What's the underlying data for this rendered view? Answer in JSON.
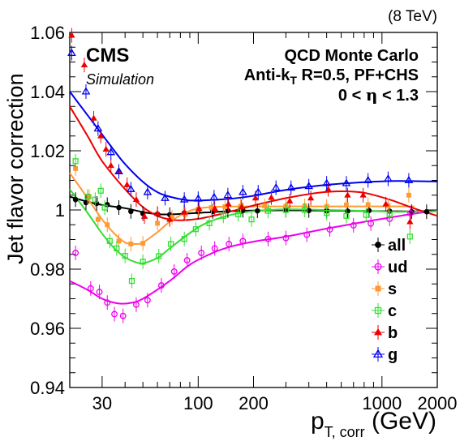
{
  "header": {
    "energy": "(8 TeV)",
    "cms": "CMS",
    "simulation": "Simulation",
    "info1": "QCD Monte Carlo",
    "info2_pre": "Anti-k",
    "info2_sub": "T",
    "info2_post": " R=0.5, PF+CHS",
    "info3_a": "0 < ",
    "info3_eta": "η",
    "info3_b": " < 1.3"
  },
  "chart_data": {
    "type": "scatter",
    "title": "",
    "ylabel": "Jet flavor correction",
    "xlabel": {
      "main": "p",
      "sub": "T, corr",
      "unit": " (GeV)"
    },
    "xscale": "log",
    "xlim": [
      20,
      2000
    ],
    "ylim": [
      0.94,
      1.06
    ],
    "xticks": [
      30,
      100,
      200,
      1000,
      2000
    ],
    "yticks": [
      0.94,
      0.96,
      0.98,
      1,
      1.02,
      1.04,
      1.06
    ],
    "legend_position": "right",
    "series": [
      {
        "name": "all",
        "color": "#000000",
        "marker": "filled-circle",
        "points": [
          [
            21.5,
            1.0035
          ],
          [
            24.5,
            1.0025
          ],
          [
            28,
            1.0022
          ],
          [
            32,
            1.0018
          ],
          [
            37,
            1.0008
          ],
          [
            43,
            0.9995
          ],
          [
            50,
            0.9988
          ],
          [
            60,
            0.9986
          ],
          [
            70,
            0.9984
          ],
          [
            84,
            0.999
          ],
          [
            100,
            0.9994
          ],
          [
            120,
            0.9995
          ],
          [
            145,
            0.9998
          ],
          [
            175,
            0.9999
          ],
          [
            210,
            0.9997
          ],
          [
            300,
            0.9999
          ],
          [
            400,
            0.9998
          ],
          [
            500,
            0.9997
          ],
          [
            650,
            0.9996
          ],
          [
            850,
            0.9998
          ],
          [
            1100,
            0.9996
          ],
          [
            1450,
            0.9994
          ],
          [
            1750,
            0.9994
          ]
        ],
        "fit": [
          [
            20,
            1.0045
          ],
          [
            25,
            1.0028
          ],
          [
            30,
            1.0017
          ],
          [
            40,
            1.0006
          ],
          [
            50,
            0.9993
          ],
          [
            60,
            0.9986
          ],
          [
            70,
            0.9985
          ],
          [
            100,
            0.999
          ],
          [
            150,
            0.9996
          ],
          [
            200,
            0.9998
          ],
          [
            300,
            0.9999
          ],
          [
            500,
            0.9998
          ],
          [
            1000,
            0.9996
          ],
          [
            1500,
            0.9995
          ],
          [
            2000,
            0.9998
          ]
        ]
      },
      {
        "name": "ud",
        "color": "#ee00ee",
        "marker": "open-circle",
        "points": [
          [
            21.5,
            0.9855
          ],
          [
            26,
            0.9735
          ],
          [
            29,
            0.9723
          ],
          [
            32,
            0.9687
          ],
          [
            35,
            0.9648
          ],
          [
            39,
            0.9642
          ],
          [
            46,
            0.968
          ],
          [
            53,
            0.9695
          ],
          [
            63,
            0.9745
          ],
          [
            74,
            0.9792
          ],
          [
            87,
            0.983
          ],
          [
            104,
            0.9855
          ],
          [
            123,
            0.987
          ],
          [
            147,
            0.9885
          ],
          [
            175,
            0.9895
          ],
          [
            240,
            0.9902
          ],
          [
            300,
            0.9905
          ],
          [
            390,
            0.9916
          ],
          [
            520,
            0.9934
          ],
          [
            700,
            0.9948
          ],
          [
            870,
            0.9954
          ],
          [
            1100,
            0.997
          ],
          [
            1430,
            0.9989
          ]
        ],
        "fit": [
          [
            20,
            0.976
          ],
          [
            25,
            0.973
          ],
          [
            30,
            0.97
          ],
          [
            36,
            0.9685
          ],
          [
            42,
            0.9685
          ],
          [
            50,
            0.97
          ],
          [
            70,
            0.976
          ],
          [
            90,
            0.9815
          ],
          [
            120,
            0.9855
          ],
          [
            150,
            0.9876
          ],
          [
            200,
            0.9893
          ],
          [
            300,
            0.991
          ],
          [
            500,
            0.9937
          ],
          [
            800,
            0.996
          ],
          [
            1200,
            0.9978
          ],
          [
            1600,
            0.999
          ],
          [
            2000,
            0.9997
          ]
        ]
      },
      {
        "name": "s",
        "color": "#ff9933",
        "marker": "filled-square",
        "points": [
          [
            21.5,
            1.014
          ],
          [
            25.5,
            1.0045
          ],
          [
            28.5,
            0.9968
          ],
          [
            32,
            0.995
          ],
          [
            37,
            0.9895
          ],
          [
            43,
            0.9885
          ],
          [
            50,
            0.9887
          ],
          [
            60,
            0.9955
          ],
          [
            72,
            0.9975
          ],
          [
            85,
            0.9985
          ],
          [
            100,
            1.0003
          ],
          [
            118,
            1.0008
          ],
          [
            140,
            1.0011
          ],
          [
            170,
            1.0013
          ],
          [
            230,
            1.0014
          ],
          [
            300,
            1.0013
          ],
          [
            380,
            1.0014
          ],
          [
            500,
            1.0012
          ],
          [
            640,
            1.0017
          ],
          [
            840,
            1.0018
          ],
          [
            1080,
            1.0015
          ],
          [
            1400,
            1.005
          ]
        ],
        "fit": [
          [
            20,
            1.0125
          ],
          [
            25,
            1.004
          ],
          [
            30,
            0.9968
          ],
          [
            35,
            0.992
          ],
          [
            40,
            0.989
          ],
          [
            45,
            0.9885
          ],
          [
            50,
            0.989
          ],
          [
            60,
            0.9925
          ],
          [
            70,
            0.996
          ],
          [
            85,
            0.999
          ],
          [
            100,
            1.0005
          ],
          [
            130,
            1.0011
          ],
          [
            200,
            1.0012
          ],
          [
            400,
            1.0012
          ],
          [
            1000,
            1.0012
          ],
          [
            1500,
            1.0012
          ]
        ]
      },
      {
        "name": "c",
        "color": "#33dd33",
        "marker": "open-square",
        "points": [
          [
            21.5,
            1.0165
          ],
          [
            25,
            1.0045
          ],
          [
            27.5,
            1.0035
          ],
          [
            29.5,
            1.0065
          ],
          [
            31,
            1.0008
          ],
          [
            33,
            0.9895
          ],
          [
            36,
            0.987
          ],
          [
            40,
            0.9845
          ],
          [
            43.5,
            0.976
          ],
          [
            50,
            0.9825
          ],
          [
            61,
            0.9844
          ],
          [
            71,
            0.9885
          ],
          [
            84,
            0.9902
          ],
          [
            97,
            0.9935
          ],
          [
            115,
            0.9955
          ],
          [
            137,
            0.998
          ],
          [
            165,
            0.9985
          ],
          [
            195,
            0.9968
          ],
          [
            240,
            0.9997
          ],
          [
            300,
            1.0
          ],
          [
            380,
            1.0
          ],
          [
            500,
            0.999
          ],
          [
            640,
            0.998
          ],
          [
            820,
            0.9983
          ],
          [
            1100,
            0.9985
          ],
          [
            1420,
            0.991
          ]
        ],
        "fit": [
          [
            20,
            1.007
          ],
          [
            25,
            0.999
          ],
          [
            30,
            0.992
          ],
          [
            35,
            0.987
          ],
          [
            40,
            0.984
          ],
          [
            45,
            0.9825
          ],
          [
            50,
            0.982
          ],
          [
            60,
            0.9838
          ],
          [
            70,
            0.987
          ],
          [
            90,
            0.9922
          ],
          [
            110,
            0.9955
          ],
          [
            150,
            0.9983
          ],
          [
            200,
            0.9996
          ],
          [
            300,
            1.0002
          ],
          [
            500,
            1.0
          ],
          [
            800,
            0.9997
          ],
          [
            1200,
            0.9994
          ],
          [
            2000,
            0.9996
          ]
        ]
      },
      {
        "name": "b",
        "color": "#ee0000",
        "marker": "filled-triangle",
        "points": [
          [
            20.5,
            1.059
          ],
          [
            24,
            1.049
          ],
          [
            27,
            1.031
          ],
          [
            29.5,
            1.025
          ],
          [
            31.5,
            1.0205
          ],
          [
            33.5,
            1.015
          ],
          [
            37,
            1.013
          ],
          [
            41,
            1.0085
          ],
          [
            46,
            1.0035
          ],
          [
            51,
            0.9978
          ],
          [
            60,
            0.9988
          ],
          [
            70,
            0.9968
          ],
          [
            84,
            0.9992
          ],
          [
            101,
            1.0005
          ],
          [
            123,
            1.0005
          ],
          [
            146,
            1.002
          ],
          [
            172,
            1.001
          ],
          [
            205,
            1.004
          ],
          [
            250,
            1.0042
          ],
          [
            315,
            1.003
          ],
          [
            410,
            1.004
          ],
          [
            510,
            1.007
          ],
          [
            650,
            1.005
          ],
          [
            790,
            1.005
          ],
          [
            1050,
            1.002
          ],
          [
            1420,
            0.996
          ]
        ],
        "fit": [
          [
            20,
            1.035
          ],
          [
            25,
            1.025
          ],
          [
            30,
            1.0165
          ],
          [
            40,
            1.007
          ],
          [
            50,
            1.001
          ],
          [
            60,
            0.998
          ],
          [
            70,
            0.9968
          ],
          [
            80,
            0.9965
          ],
          [
            100,
            0.997
          ],
          [
            130,
            0.9985
          ],
          [
            200,
            1.0015
          ],
          [
            300,
            1.004
          ],
          [
            450,
            1.0058
          ],
          [
            600,
            1.0063
          ],
          [
            800,
            1.0058
          ],
          [
            1100,
            1.0035
          ],
          [
            1500,
            1.0005
          ],
          [
            2000,
            0.998
          ]
        ]
      },
      {
        "name": "g",
        "color": "#0000ee",
        "marker": "open-triangle",
        "points": [
          [
            20.5,
            1.053
          ],
          [
            24.5,
            1.04
          ],
          [
            28.5,
            1.0275
          ],
          [
            33.5,
            1.0195
          ],
          [
            37,
            1.013
          ],
          [
            43,
            1.007
          ],
          [
            53,
            1.006
          ],
          [
            66,
            1.004
          ],
          [
            84,
            1.0035
          ],
          [
            100,
            1.0038
          ],
          [
            122,
            1.0043
          ],
          [
            145,
            1.005
          ],
          [
            175,
            1.006
          ],
          [
            212,
            1.006
          ],
          [
            265,
            1.0075
          ],
          [
            320,
            1.0075
          ],
          [
            400,
            1.008
          ],
          [
            500,
            1.009
          ],
          [
            640,
            1.009
          ],
          [
            840,
            1.01
          ],
          [
            1080,
            1.0105
          ],
          [
            1400,
            1.01
          ]
        ],
        "fit": [
          [
            20,
            1.04
          ],
          [
            25,
            1.032
          ],
          [
            30,
            1.0255
          ],
          [
            35,
            1.02
          ],
          [
            40,
            1.0155
          ],
          [
            50,
            1.0095
          ],
          [
            60,
            1.006
          ],
          [
            70,
            1.0045
          ],
          [
            85,
            1.0034
          ],
          [
            100,
            1.0032
          ],
          [
            150,
            1.0038
          ],
          [
            200,
            1.0048
          ],
          [
            300,
            1.0068
          ],
          [
            500,
            1.0085
          ],
          [
            800,
            1.0094
          ],
          [
            1200,
            1.0098
          ],
          [
            2000,
            1.0096
          ]
        ]
      }
    ]
  }
}
